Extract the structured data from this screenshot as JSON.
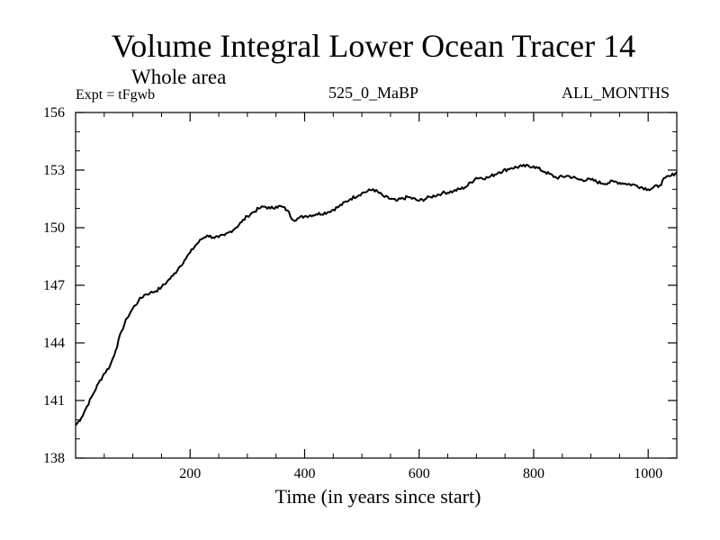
{
  "chart_data": {
    "type": "line",
    "title": "Volume Integral Lower Ocean Tracer 14",
    "subtitle": "Whole area",
    "experiment_label": "Expt = tFgwb",
    "center_label": "525_0_MaBP",
    "right_label": "ALL_MONTHS",
    "xlabel": "Time (in years since start)",
    "ylabel": "",
    "xlim": [
      0,
      1050
    ],
    "ylim": [
      138,
      156
    ],
    "x_ticks": [
      200,
      400,
      600,
      800,
      1000
    ],
    "y_ticks": [
      138,
      141,
      144,
      147,
      150,
      153,
      156
    ],
    "series": [
      {
        "name": "Tracer 14",
        "x": [
          0,
          10,
          20,
          30,
          40,
          50,
          60,
          70,
          80,
          90,
          100,
          110,
          120,
          130,
          140,
          150,
          160,
          170,
          180,
          190,
          200,
          210,
          220,
          230,
          240,
          250,
          260,
          270,
          280,
          290,
          300,
          310,
          320,
          330,
          340,
          350,
          360,
          370,
          380,
          390,
          400,
          420,
          440,
          460,
          480,
          500,
          520,
          540,
          560,
          580,
          600,
          620,
          640,
          660,
          680,
          700,
          720,
          740,
          760,
          780,
          800,
          820,
          840,
          860,
          880,
          900,
          920,
          940,
          960,
          980,
          1000,
          1020,
          1030,
          1040,
          1050
        ],
        "values": [
          139.7,
          140.1,
          140.7,
          141.3,
          141.9,
          142.4,
          142.8,
          143.6,
          144.6,
          145.3,
          145.8,
          146.2,
          146.5,
          146.6,
          146.7,
          146.9,
          147.2,
          147.5,
          147.9,
          148.3,
          148.7,
          149.1,
          149.4,
          149.6,
          149.5,
          149.5,
          149.6,
          149.8,
          150.0,
          150.3,
          150.6,
          150.8,
          151.0,
          151.1,
          151.0,
          151.1,
          151.1,
          150.9,
          150.4,
          150.5,
          150.6,
          150.7,
          150.8,
          151.1,
          151.5,
          151.8,
          152.0,
          151.6,
          151.4,
          151.6,
          151.4,
          151.6,
          151.8,
          151.9,
          152.1,
          152.6,
          152.6,
          152.9,
          153.1,
          153.2,
          153.2,
          152.9,
          152.6,
          152.7,
          152.5,
          152.5,
          152.3,
          152.4,
          152.3,
          152.2,
          152.0,
          152.2,
          152.6,
          152.7,
          152.9
        ]
      }
    ]
  }
}
